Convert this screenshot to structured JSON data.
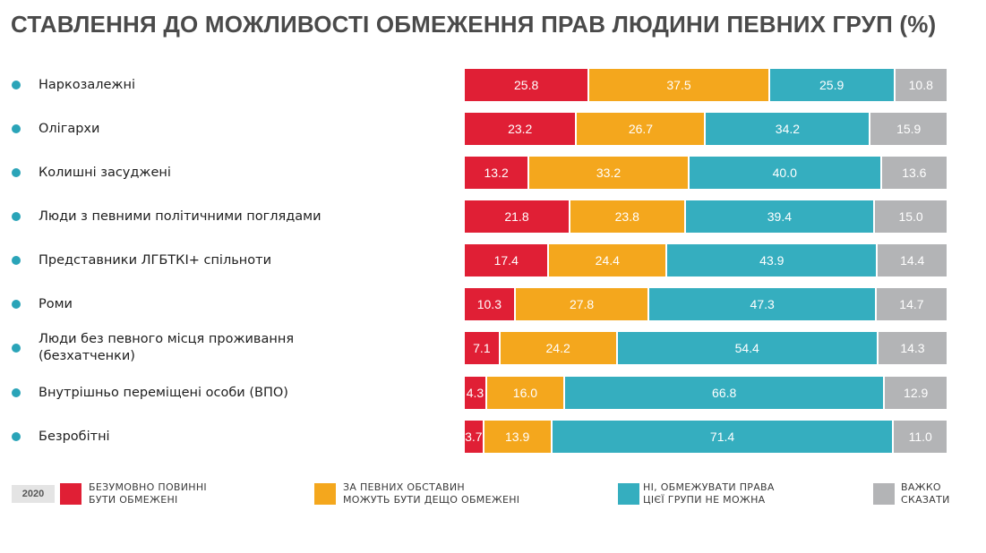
{
  "title": "СТАВЛЕННЯ ДО МОЖЛИВОСТІ ОБМЕЖЕННЯ ПРАВ ЛЮДИНИ ПЕВНИХ ГРУП (%)",
  "colors": {
    "dot": "#2aa4b8",
    "series": [
      "#e01f35",
      "#f4a71d",
      "#35aebf",
      "#b3b4b6"
    ]
  },
  "chart_data": {
    "type": "bar",
    "stacked": true,
    "orientation": "horizontal",
    "categories": [
      "Наркозалежні",
      "Олігархи",
      "Колишні засуджені",
      "Люди з певними політичними поглядами",
      "Представники ЛГБТКІ+ спільноти",
      "Роми",
      "Люди без певного місця проживання\n(безхатченки)",
      "Внутрішньо переміщені особи (ВПО)",
      "Безробітні"
    ],
    "series": [
      {
        "name": "БЕЗУМОВНО ПОВИННІ\nБУТИ ОБМЕЖЕНІ",
        "values": [
          25.8,
          23.2,
          13.2,
          21.8,
          17.4,
          10.3,
          7.1,
          4.3,
          3.7
        ]
      },
      {
        "name": "ЗА ПЕВНИХ ОБСТАВИН\nМОЖУТЬ БУТИ ДЕЩО ОБМЕЖЕНІ",
        "values": [
          37.5,
          26.7,
          33.2,
          23.8,
          24.4,
          27.8,
          24.2,
          16.0,
          13.9
        ]
      },
      {
        "name": "НІ, ОБМЕЖУВАТИ ПРАВА\nЦІЄЇ ГРУПИ НЕ МОЖНА",
        "values": [
          25.9,
          34.2,
          40.0,
          39.4,
          43.9,
          47.3,
          54.4,
          66.8,
          71.4
        ]
      },
      {
        "name": "ВАЖКО\nСКАЗАТИ",
        "values": [
          10.8,
          15.9,
          13.6,
          15.0,
          14.4,
          14.7,
          14.3,
          12.9,
          11.0
        ]
      }
    ],
    "value_labels": [
      [
        "25.8",
        "37.5",
        "25.9",
        "10.8"
      ],
      [
        "23.2",
        "26.7",
        "34.2",
        "15.9"
      ],
      [
        "13.2",
        "33.2",
        "40.0",
        "13.6"
      ],
      [
        "21.8",
        "23.8",
        "39.4",
        "15.0"
      ],
      [
        "17.4",
        "24.4",
        "43.9",
        "14.4"
      ],
      [
        "10.3",
        "27.8",
        "47.3",
        "14.7"
      ],
      [
        "7.1",
        "24.2",
        "54.4",
        "14.3"
      ],
      [
        "4.3",
        "16.0",
        "66.8",
        "12.9"
      ],
      [
        "3.7",
        "13.9",
        "71.4",
        "11.0"
      ]
    ],
    "xlim": [
      0,
      100
    ],
    "legend_position": "bottom",
    "year_tag": "2020"
  }
}
